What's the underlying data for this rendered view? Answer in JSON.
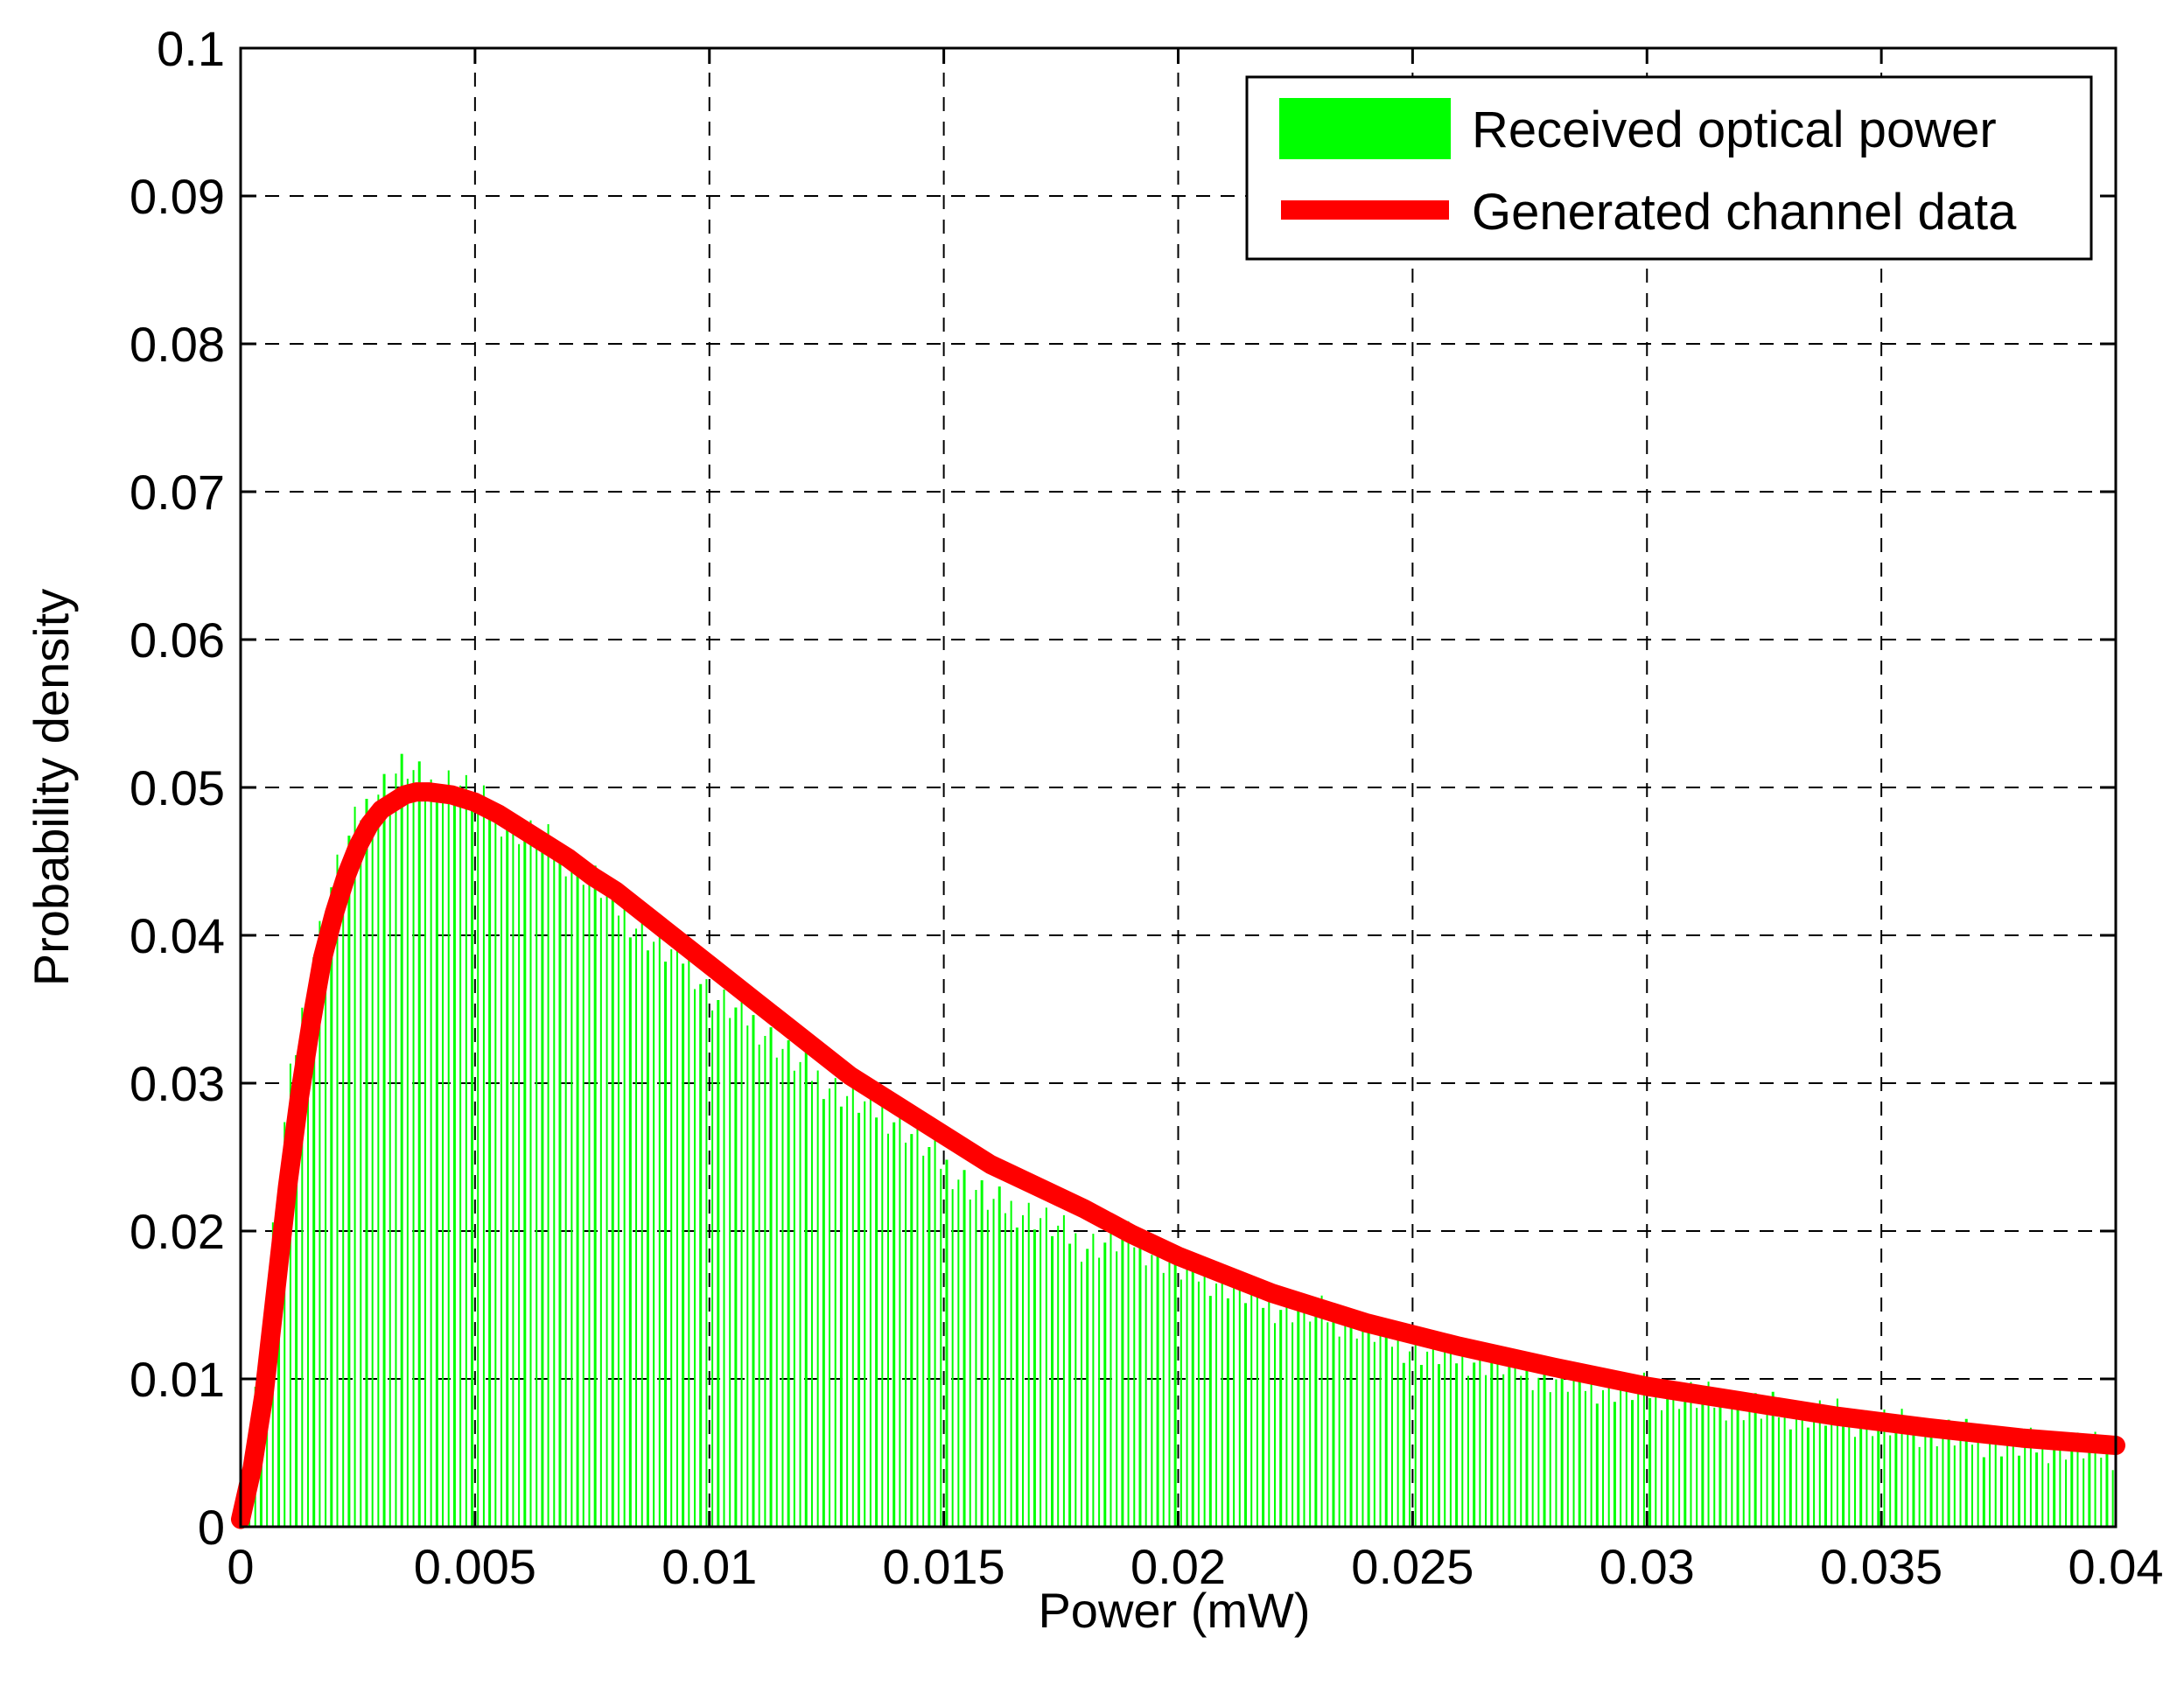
{
  "chart_data": {
    "type": "bar",
    "xlabel": "Power (mW)",
    "ylabel": "Probability density",
    "xlim": [
      0,
      0.04
    ],
    "ylim": [
      0,
      0.1
    ],
    "grid": true,
    "legend_position": "top-right",
    "x_ticks": [
      "0",
      "0.005",
      "0.01",
      "0.015",
      "0.02",
      "0.025",
      "0.03",
      "0.035",
      "0.04"
    ],
    "y_ticks": [
      "0",
      "0.01",
      "0.02",
      "0.03",
      "0.04",
      "0.05",
      "0.06",
      "0.07",
      "0.08",
      "0.09",
      "0.1"
    ],
    "series": [
      {
        "name": "Received optical power",
        "kind": "histogram",
        "color": "#00ff00",
        "x": [
          0.0005,
          0.001,
          0.0015,
          0.002,
          0.0025,
          0.003,
          0.0035,
          0.004,
          0.0045,
          0.005,
          0.0055,
          0.006,
          0.0065,
          0.007,
          0.0075,
          0.008,
          0.0085,
          0.009,
          0.0095,
          0.01,
          0.011,
          0.012,
          0.013,
          0.014,
          0.015,
          0.016,
          0.017,
          0.018,
          0.019,
          0.02,
          0.021,
          0.022,
          0.023,
          0.024,
          0.025,
          0.026,
          0.027,
          0.028,
          0.029,
          0.03,
          0.031,
          0.032,
          0.033,
          0.034,
          0.035,
          0.036,
          0.037,
          0.038,
          0.039,
          0.04
        ],
        "values": [
          0.014,
          0.029,
          0.038,
          0.044,
          0.048,
          0.05,
          0.0515,
          0.05,
          0.0505,
          0.0495,
          0.048,
          0.047,
          0.0465,
          0.045,
          0.044,
          0.042,
          0.0405,
          0.039,
          0.0385,
          0.036,
          0.034,
          0.031,
          0.029,
          0.0275,
          0.0245,
          0.022,
          0.021,
          0.019,
          0.0195,
          0.0175,
          0.0165,
          0.015,
          0.0145,
          0.0135,
          0.012,
          0.0115,
          0.011,
          0.01,
          0.0095,
          0.0092,
          0.0088,
          0.0082,
          0.0078,
          0.0075,
          0.007,
          0.0065,
          0.006,
          0.0055,
          0.0055,
          0.005
        ]
      },
      {
        "name": "Generated channel data",
        "kind": "line",
        "color": "#ff0000",
        "x": [
          0,
          0.00025,
          0.0005,
          0.00075,
          0.001,
          0.00125,
          0.0015,
          0.00175,
          0.002,
          0.00225,
          0.0025,
          0.00275,
          0.003,
          0.00325,
          0.0035,
          0.00375,
          0.004,
          0.0045,
          0.005,
          0.0055,
          0.006,
          0.0065,
          0.007,
          0.0075,
          0.008,
          0.009,
          0.01,
          0.011,
          0.012,
          0.013,
          0.014,
          0.015,
          0.016,
          0.017,
          0.018,
          0.019,
          0.02,
          0.022,
          0.024,
          0.026,
          0.028,
          0.03,
          0.032,
          0.034,
          0.036,
          0.038,
          0.04
        ],
        "values": [
          0.0005,
          0.004,
          0.009,
          0.016,
          0.023,
          0.029,
          0.034,
          0.0385,
          0.0415,
          0.044,
          0.046,
          0.0475,
          0.0485,
          0.049,
          0.0495,
          0.0497,
          0.0497,
          0.0495,
          0.049,
          0.0482,
          0.0472,
          0.0462,
          0.0452,
          0.044,
          0.043,
          0.0405,
          0.038,
          0.0355,
          0.033,
          0.0305,
          0.0285,
          0.0265,
          0.0245,
          0.023,
          0.0215,
          0.0198,
          0.0183,
          0.0158,
          0.0138,
          0.0122,
          0.0108,
          0.0095,
          0.0085,
          0.0075,
          0.0067,
          0.006,
          0.0055
        ]
      }
    ]
  }
}
